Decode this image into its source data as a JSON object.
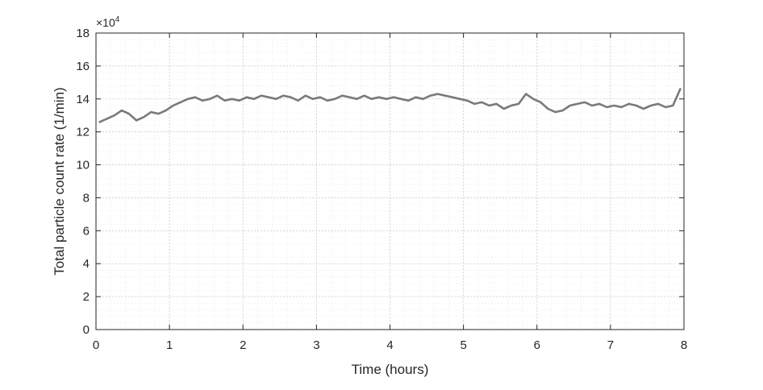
{
  "chart_data": {
    "type": "line",
    "title": "",
    "xlabel": "Time (hours)",
    "ylabel": "Total particle count rate (1/min)",
    "y_multiplier_label": "×10",
    "y_multiplier_exponent": "4",
    "xlim": [
      0,
      8
    ],
    "ylim": [
      0,
      18
    ],
    "xticks": [
      0,
      1,
      2,
      3,
      4,
      5,
      6,
      7,
      8
    ],
    "yticks": [
      0,
      2,
      4,
      6,
      8,
      10,
      12,
      14,
      16,
      18
    ],
    "x_tick_labels": [
      "0",
      "1",
      "2",
      "3",
      "4",
      "5",
      "6",
      "7",
      "8"
    ],
    "y_tick_labels": [
      "0",
      "2",
      "4",
      "6",
      "8",
      "10",
      "12",
      "14",
      "16",
      "18"
    ],
    "grid": true,
    "minor_grid": true,
    "legend": "none",
    "line_color": "#7a7a7a",
    "series": [
      {
        "x": [
          0.05,
          0.15,
          0.25,
          0.35,
          0.45,
          0.55,
          0.65,
          0.75,
          0.85,
          0.95,
          1.05,
          1.15,
          1.25,
          1.35,
          1.45,
          1.55,
          1.65,
          1.75,
          1.85,
          1.95,
          2.05,
          2.15,
          2.25,
          2.35,
          2.45,
          2.55,
          2.65,
          2.75,
          2.85,
          2.95,
          3.05,
          3.15,
          3.25,
          3.35,
          3.45,
          3.55,
          3.65,
          3.75,
          3.85,
          3.95,
          4.05,
          4.15,
          4.25,
          4.35,
          4.45,
          4.55,
          4.65,
          4.75,
          4.85,
          4.95,
          5.05,
          5.15,
          5.25,
          5.35,
          5.45,
          5.55,
          5.65,
          5.75,
          5.85,
          5.95,
          6.05,
          6.15,
          6.25,
          6.35,
          6.45,
          6.55,
          6.65,
          6.75,
          6.85,
          6.95,
          7.05,
          7.15,
          7.25,
          7.35,
          7.45,
          7.55,
          7.65,
          7.75,
          7.85,
          7.95
        ],
        "values": [
          12.6,
          12.8,
          13.0,
          13.3,
          13.1,
          12.7,
          12.9,
          13.2,
          13.1,
          13.3,
          13.6,
          13.8,
          14.0,
          14.1,
          13.9,
          14.0,
          14.2,
          13.9,
          14.0,
          13.9,
          14.1,
          14.0,
          14.2,
          14.1,
          14.0,
          14.2,
          14.1,
          13.9,
          14.2,
          14.0,
          14.1,
          13.9,
          14.0,
          14.2,
          14.1,
          14.0,
          14.2,
          14.0,
          14.1,
          14.0,
          14.1,
          14.0,
          13.9,
          14.1,
          14.0,
          14.2,
          14.3,
          14.2,
          14.1,
          14.0,
          13.9,
          13.7,
          13.8,
          13.6,
          13.7,
          13.4,
          13.6,
          13.7,
          14.3,
          14.0,
          13.8,
          13.4,
          13.2,
          13.3,
          13.6,
          13.7,
          13.8,
          13.6,
          13.7,
          13.5,
          13.6,
          13.5,
          13.7,
          13.6,
          13.4,
          13.6,
          13.7,
          13.5,
          13.6,
          14.6
        ]
      }
    ]
  }
}
